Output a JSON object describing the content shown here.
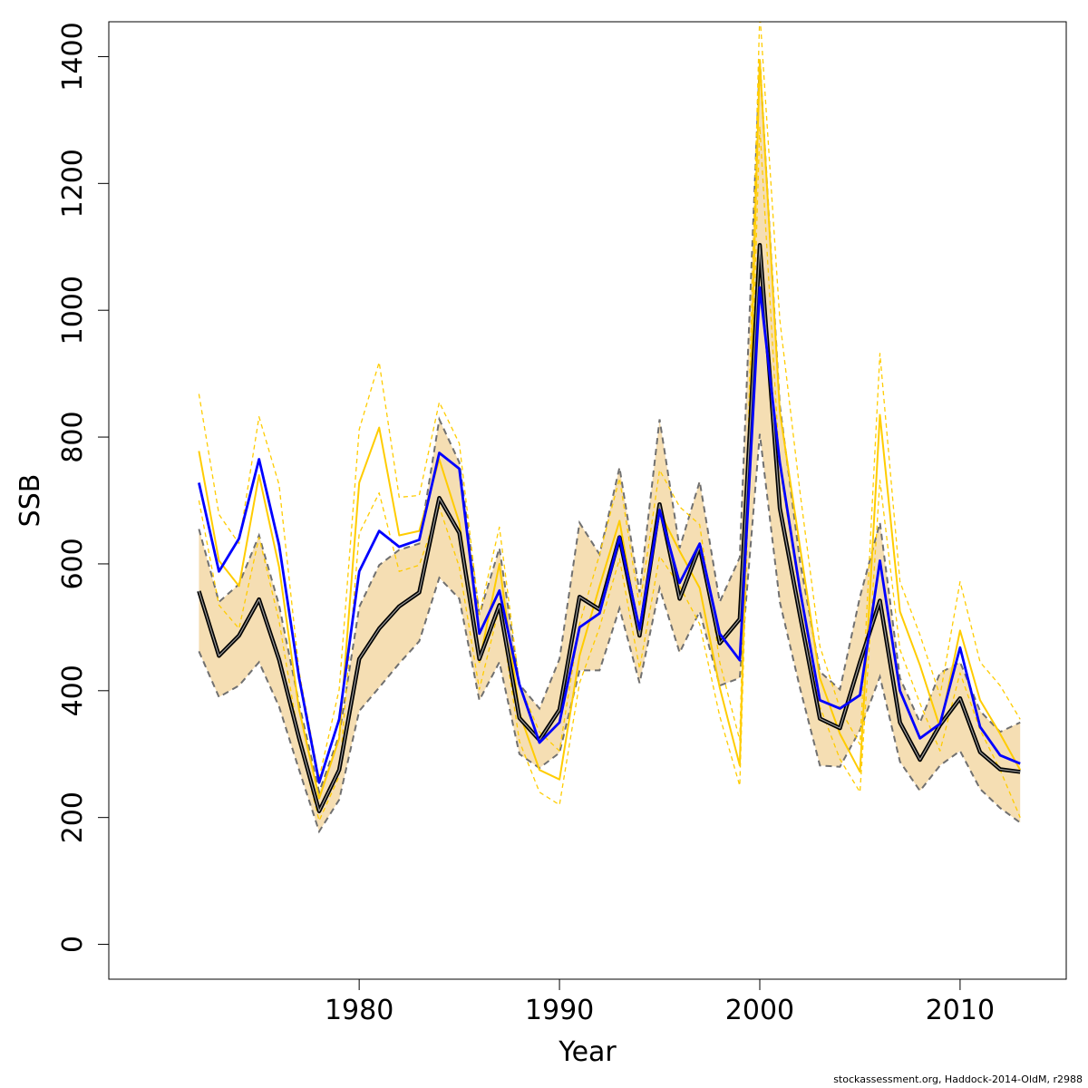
{
  "chart_data": {
    "type": "line",
    "xlabel": "Year",
    "ylabel": "SSB",
    "xlim": [
      1967.5,
      2015.3
    ],
    "ylim": [
      -55,
      1455
    ],
    "x_ticks": [
      1980,
      1990,
      2000,
      2010
    ],
    "y_ticks": [
      0,
      200,
      400,
      600,
      800,
      1000,
      1200,
      1400
    ],
    "x": [
      1972,
      1973,
      1974,
      1975,
      1976,
      1977,
      1978,
      1979,
      1980,
      1981,
      1982,
      1983,
      1984,
      1985,
      1986,
      1987,
      1988,
      1989,
      1990,
      1991,
      1992,
      1993,
      1994,
      1995,
      1996,
      1997,
      1998,
      1999,
      2000,
      2001,
      2002,
      2003,
      2004,
      2005,
      2006,
      2007,
      2008,
      2009,
      2010,
      2011,
      2012,
      2013
    ],
    "band": {
      "color": "#F5DEB3",
      "border_color": "#707070",
      "lower": [
        462,
        390,
        408,
        445,
        375,
        275,
        178,
        228,
        368,
        405,
        443,
        478,
        578,
        545,
        385,
        445,
        300,
        278,
        302,
        432,
        432,
        530,
        412,
        562,
        460,
        525,
        408,
        420,
        805,
        540,
        405,
        282,
        280,
        338,
        422,
        288,
        242,
        282,
        305,
        245,
        215,
        192
      ],
      "upper": [
        655,
        540,
        568,
        645,
        535,
        380,
        240,
        330,
        532,
        598,
        622,
        632,
        828,
        760,
        520,
        625,
        410,
        372,
        450,
        665,
        615,
        752,
        555,
        828,
        625,
        730,
        540,
        610,
        1395,
        850,
        605,
        430,
        402,
        548,
        665,
        420,
        350,
        428,
        445,
        368,
        335,
        350
      ]
    },
    "series": [
      {
        "color": "#000000",
        "style": "solid-double",
        "values": [
          557,
          455,
          487,
          544,
          449,
          325,
          210,
          275,
          450,
          498,
          533,
          555,
          704,
          649,
          450,
          535,
          357,
          322,
          370,
          548,
          528,
          642,
          487,
          694,
          545,
          627,
          475,
          513,
          1103,
          688,
          520,
          356,
          341,
          445,
          542,
          350,
          291,
          346,
          388,
          303,
          276,
          272
        ]
      },
      {
        "color": "#0000FF",
        "style": "solid",
        "values": [
          728,
          588,
          640,
          765,
          630,
          420,
          255,
          355,
          588,
          652,
          627,
          638,
          775,
          750,
          490,
          558,
          410,
          318,
          350,
          500,
          522,
          642,
          497,
          685,
          570,
          632,
          490,
          448,
          1036,
          760,
          560,
          385,
          372,
          393,
          605,
          400,
          325,
          348,
          468,
          343,
          298,
          285
        ]
      },
      {
        "color": "#FFCC00",
        "style": "solid",
        "values": [
          778,
          605,
          565,
          740,
          595,
          370,
          230,
          325,
          728,
          815,
          645,
          652,
          765,
          665,
          445,
          600,
          365,
          275,
          260,
          455,
          565,
          668,
          485,
          682,
          620,
          562,
          405,
          282,
          1395,
          840,
          628,
          420,
          332,
          272,
          835,
          525,
          440,
          342,
          495,
          385,
          332,
          275
        ]
      },
      {
        "color": "#FFCC00",
        "style": "dashed",
        "values": [
          868,
          678,
          632,
          832,
          725,
          430,
          262,
          402,
          812,
          918,
          705,
          708,
          855,
          790,
          520,
          658,
          410,
          335,
          305,
          505,
          615,
          735,
          532,
          748,
          690,
          662,
          445,
          322,
          1470,
          985,
          715,
          470,
          372,
          315,
          932,
          572,
          488,
          392,
          572,
          445,
          408,
          355
        ]
      },
      {
        "color": "#FFCC00",
        "style": "dashed",
        "values": [
          700,
          535,
          498,
          642,
          510,
          322,
          195,
          265,
          648,
          712,
          588,
          598,
          690,
          595,
          402,
          532,
          320,
          240,
          220,
          412,
          500,
          608,
          435,
          612,
          565,
          505,
          360,
          250,
          1290,
          750,
          552,
          375,
          292,
          240,
          732,
          465,
          380,
          305,
          428,
          338,
          275,
          200
        ]
      }
    ]
  },
  "footer": "stockassessment.org, Haddock-2014-OldM, r2988"
}
